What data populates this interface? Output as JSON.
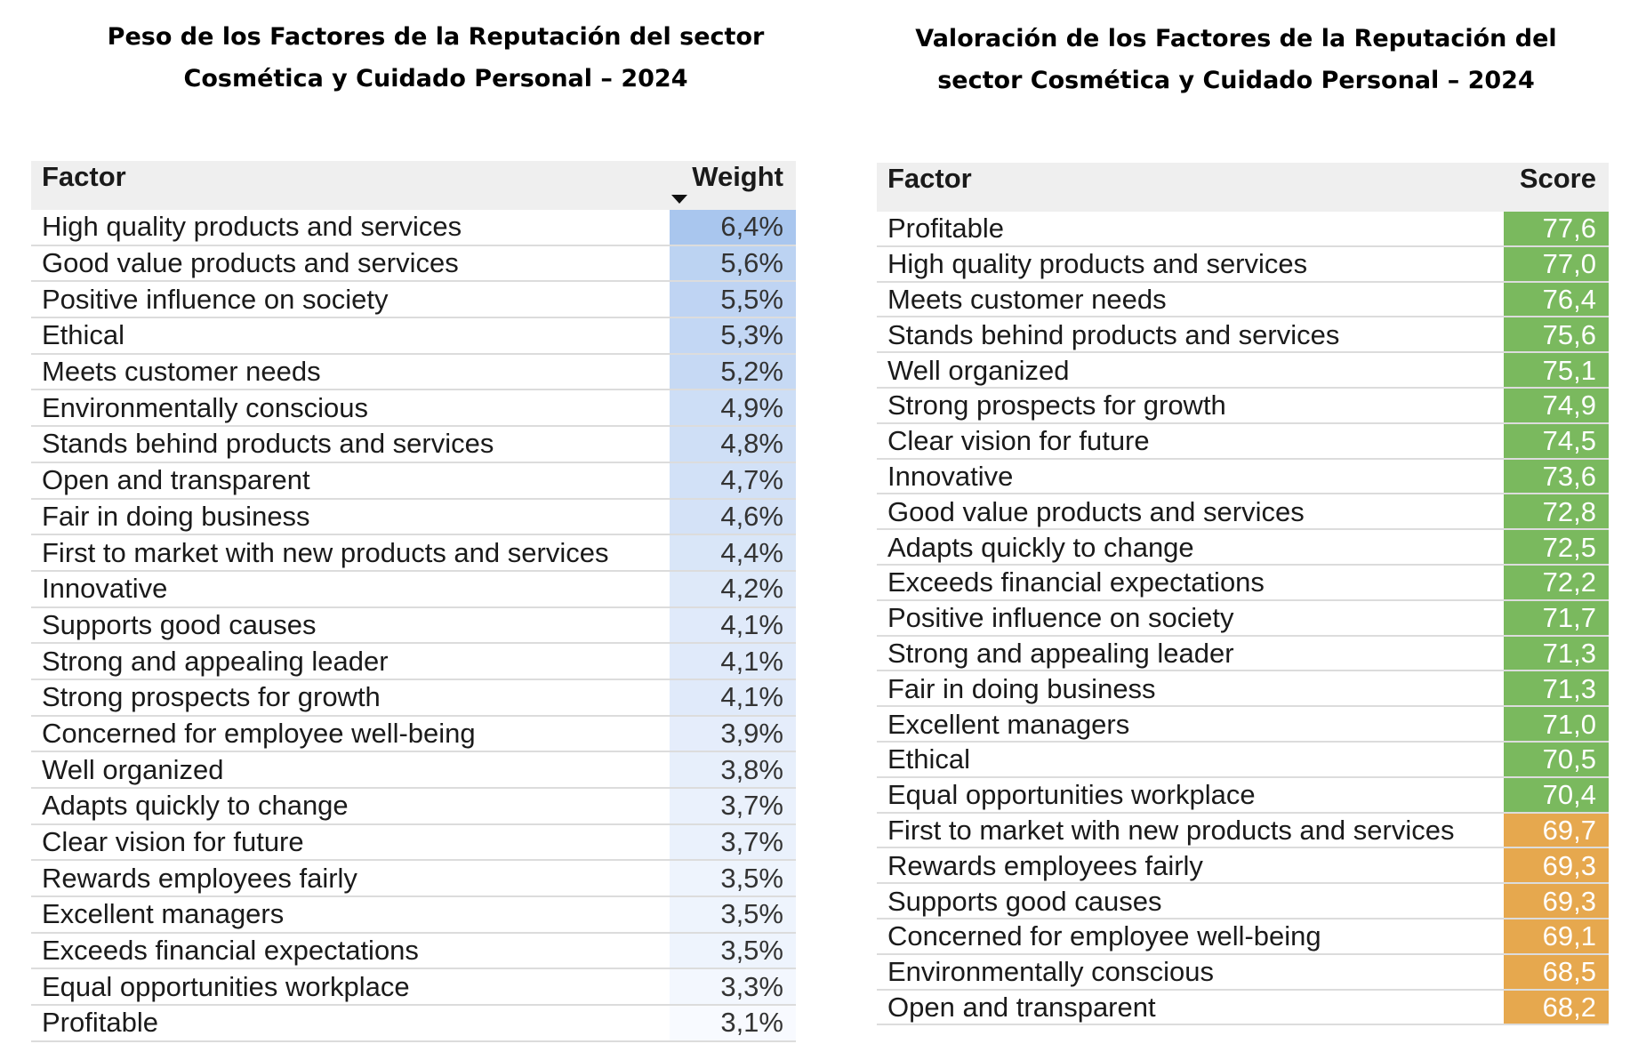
{
  "left_panel": {
    "title_line1": "Peso de los Factores de la Reputación del sector",
    "title_line2": "Cosmética y Cuidado Personal – 2024",
    "col_factor": "Factor",
    "col_value": "Weight"
  },
  "right_panel": {
    "title_line1": "Valoración de los Factores de la Reputación del",
    "title_line2": "sector Cosmética y Cuidado Personal – 2024",
    "col_factor": "Factor",
    "col_value": "Score"
  },
  "colors": {
    "weight_high": "#a9c6ee",
    "weight_low": "#f8faff",
    "score_green": "#7ab95e",
    "score_orange": "#e6a84e"
  },
  "chart_data": [
    {
      "type": "table",
      "title": "Peso de los Factores de la Reputación del sector Cosmética y Cuidado Personal – 2024",
      "columns": [
        "Factor",
        "Weight"
      ],
      "sorted_by": "Weight",
      "rows": [
        {
          "factor": "High quality products and services",
          "value": 6.4,
          "label": "6,4%"
        },
        {
          "factor": "Good value products and services",
          "value": 5.6,
          "label": "5,6%"
        },
        {
          "factor": "Positive influence on society",
          "value": 5.5,
          "label": "5,5%"
        },
        {
          "factor": "Ethical",
          "value": 5.3,
          "label": "5,3%"
        },
        {
          "factor": "Meets customer needs",
          "value": 5.2,
          "label": "5,2%"
        },
        {
          "factor": "Environmentally conscious",
          "value": 4.9,
          "label": "4,9%"
        },
        {
          "factor": "Stands behind products and services",
          "value": 4.8,
          "label": "4,8%"
        },
        {
          "factor": "Open and transparent",
          "value": 4.7,
          "label": "4,7%"
        },
        {
          "factor": "Fair in doing business",
          "value": 4.6,
          "label": "4,6%"
        },
        {
          "factor": "First to market with new products and services",
          "value": 4.4,
          "label": "4,4%"
        },
        {
          "factor": "Innovative",
          "value": 4.2,
          "label": "4,2%"
        },
        {
          "factor": "Supports good causes",
          "value": 4.1,
          "label": "4,1%"
        },
        {
          "factor": "Strong and appealing leader",
          "value": 4.1,
          "label": "4,1%"
        },
        {
          "factor": "Strong prospects for growth",
          "value": 4.1,
          "label": "4,1%"
        },
        {
          "factor": "Concerned for employee well-being",
          "value": 3.9,
          "label": "3,9%"
        },
        {
          "factor": "Well organized",
          "value": 3.8,
          "label": "3,8%"
        },
        {
          "factor": "Adapts quickly to change",
          "value": 3.7,
          "label": "3,7%"
        },
        {
          "factor": "Clear vision for future",
          "value": 3.7,
          "label": "3,7%"
        },
        {
          "factor": "Rewards employees fairly",
          "value": 3.5,
          "label": "3,5%"
        },
        {
          "factor": "Excellent managers",
          "value": 3.5,
          "label": "3,5%"
        },
        {
          "factor": "Exceeds financial expectations",
          "value": 3.5,
          "label": "3,5%"
        },
        {
          "factor": "Equal opportunities workplace",
          "value": 3.3,
          "label": "3,3%"
        },
        {
          "factor": "Profitable",
          "value": 3.1,
          "label": "3,1%"
        }
      ]
    },
    {
      "type": "table",
      "title": "Valoración de los Factores de la Reputación del sector Cosmética y Cuidado Personal – 2024",
      "columns": [
        "Factor",
        "Score"
      ],
      "threshold": 70,
      "rows": [
        {
          "factor": "Profitable",
          "value": 77.6,
          "label": "77,6"
        },
        {
          "factor": "High quality products and services",
          "value": 77.0,
          "label": "77,0"
        },
        {
          "factor": "Meets customer needs",
          "value": 76.4,
          "label": "76,4"
        },
        {
          "factor": "Stands behind products and services",
          "value": 75.6,
          "label": "75,6"
        },
        {
          "factor": "Well organized",
          "value": 75.1,
          "label": "75,1"
        },
        {
          "factor": "Strong prospects for growth",
          "value": 74.9,
          "label": "74,9"
        },
        {
          "factor": "Clear vision for future",
          "value": 74.5,
          "label": "74,5"
        },
        {
          "factor": "Innovative",
          "value": 73.6,
          "label": "73,6"
        },
        {
          "factor": "Good value products and services",
          "value": 72.8,
          "label": "72,8"
        },
        {
          "factor": "Adapts quickly to change",
          "value": 72.5,
          "label": "72,5"
        },
        {
          "factor": "Exceeds financial expectations",
          "value": 72.2,
          "label": "72,2"
        },
        {
          "factor": "Positive influence on society",
          "value": 71.7,
          "label": "71,7"
        },
        {
          "factor": "Strong and appealing leader",
          "value": 71.3,
          "label": "71,3"
        },
        {
          "factor": "Fair in doing business",
          "value": 71.3,
          "label": "71,3"
        },
        {
          "factor": "Excellent managers",
          "value": 71.0,
          "label": "71,0"
        },
        {
          "factor": "Ethical",
          "value": 70.5,
          "label": "70,5"
        },
        {
          "factor": "Equal opportunities workplace",
          "value": 70.4,
          "label": "70,4"
        },
        {
          "factor": "First to market with new products and services",
          "value": 69.7,
          "label": "69,7"
        },
        {
          "factor": "Rewards employees fairly",
          "value": 69.3,
          "label": "69,3"
        },
        {
          "factor": "Supports good causes",
          "value": 69.3,
          "label": "69,3"
        },
        {
          "factor": "Concerned for employee well-being",
          "value": 69.1,
          "label": "69,1"
        },
        {
          "factor": "Environmentally conscious",
          "value": 68.5,
          "label": "68,5"
        },
        {
          "factor": "Open and transparent",
          "value": 68.2,
          "label": "68,2"
        }
      ]
    }
  ]
}
